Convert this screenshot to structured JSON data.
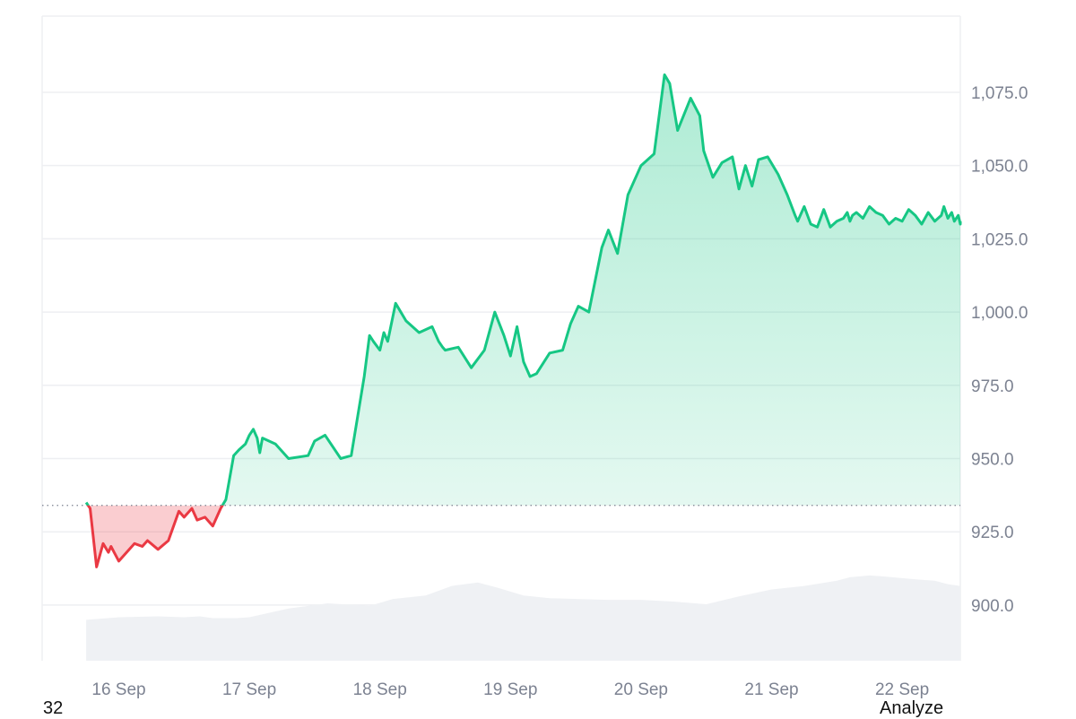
{
  "colors": {
    "up": "#16c784",
    "down": "#ea3943",
    "up_fill": "#16c784",
    "down_fill": "#ea3943",
    "volume": "#eff1f4",
    "grid": "#eeeff2",
    "baseline": "#7c8291"
  },
  "footer": {
    "left_text": "32",
    "right_text": "Analyze"
  },
  "chart_data": {
    "type": "area",
    "title": "",
    "xlabel": "",
    "ylabel": "",
    "x_ticks": [
      "16 Sep",
      "17 Sep",
      "18 Sep",
      "19 Sep",
      "20 Sep",
      "21 Sep",
      "22 Sep"
    ],
    "y_ticks": [
      "900.0",
      "925.0",
      "950.0",
      "975.0",
      "1,000.0",
      "1,025.0",
      "1,050.0",
      "1,075.0"
    ],
    "ylim": [
      881,
      1101
    ],
    "baseline": 934,
    "grid": true,
    "y_axis_side": "right",
    "price": {
      "x_unit": "days since 16 Sep (00:00)",
      "x": [
        -0.25,
        -0.22,
        -0.17,
        -0.12,
        -0.08,
        -0.06,
        0.0,
        0.06,
        0.12,
        0.18,
        0.22,
        0.3,
        0.38,
        0.46,
        0.5,
        0.56,
        0.6,
        0.66,
        0.72,
        0.78,
        0.82,
        0.88,
        0.92,
        0.97,
        1.0,
        1.03,
        1.06,
        1.08,
        1.1,
        1.2,
        1.3,
        1.45,
        1.5,
        1.58,
        1.7,
        1.78,
        1.88,
        1.92,
        1.95,
        2.0,
        2.03,
        2.06,
        2.12,
        2.2,
        2.3,
        2.4,
        2.45,
        2.48,
        2.5,
        2.6,
        2.7,
        2.8,
        2.88,
        2.95,
        3.0,
        3.05,
        3.1,
        3.15,
        3.2,
        3.3,
        3.4,
        3.46,
        3.52,
        3.6,
        3.7,
        3.75,
        3.82,
        3.9,
        4.0,
        4.1,
        4.18,
        4.22,
        4.28,
        4.38,
        4.45,
        4.48,
        4.55,
        4.62,
        4.7,
        4.75,
        4.8,
        4.85,
        4.9,
        4.97,
        5.05,
        5.12,
        5.18,
        5.2,
        5.25,
        5.3,
        5.35,
        5.4,
        5.45,
        5.5,
        5.55,
        5.58,
        5.6,
        5.62,
        5.65,
        5.7,
        5.75,
        5.8,
        5.85,
        5.9,
        5.95,
        6.0,
        6.05,
        6.1,
        6.15,
        6.2,
        6.25,
        6.3,
        6.32,
        6.35,
        6.38,
        6.4,
        6.43,
        6.45,
        6.47
      ],
      "values": [
        935,
        933,
        913,
        921,
        918,
        920,
        915,
        918,
        921,
        920,
        922,
        919,
        922,
        932,
        930,
        933,
        929,
        930,
        927,
        933,
        936,
        951,
        953,
        955,
        958,
        960,
        957,
        952,
        957,
        955,
        950,
        951,
        956,
        958,
        950,
        951,
        978,
        992,
        990,
        987,
        993,
        990,
        1003,
        997,
        993,
        995,
        990,
        988,
        987,
        988,
        981,
        987,
        1000,
        992,
        985,
        995,
        983,
        978,
        979,
        986,
        987,
        996,
        1002,
        1000,
        1022,
        1028,
        1020,
        1040,
        1050,
        1054,
        1081,
        1078,
        1062,
        1073,
        1067,
        1055,
        1046,
        1051,
        1053,
        1042,
        1050,
        1043,
        1052,
        1053,
        1047,
        1040,
        1033,
        1031,
        1036,
        1030,
        1029,
        1035,
        1029,
        1031,
        1032,
        1034,
        1031,
        1033,
        1034,
        1032,
        1036,
        1034,
        1033,
        1030,
        1032,
        1031,
        1035,
        1033,
        1030,
        1034,
        1031,
        1033,
        1036,
        1032,
        1034,
        1031,
        1033,
        1030,
        1031
      ]
    },
    "volume": {
      "x": [
        -0.25,
        0.0,
        0.3,
        0.5,
        0.62,
        0.72,
        0.9,
        1.0,
        1.3,
        1.6,
        1.92,
        2.1,
        2.35,
        2.55,
        2.75,
        2.9,
        3.1,
        3.3,
        3.5,
        3.75,
        4.0,
        4.25,
        4.5,
        4.75,
        5.0,
        5.25,
        5.5,
        5.6,
        5.75,
        5.85,
        6.0,
        6.15,
        6.25,
        6.35,
        6.47
      ],
      "values": [
        0.47,
        0.5,
        0.51,
        0.5,
        0.51,
        0.49,
        0.49,
        0.5,
        0.6,
        0.66,
        0.63,
        0.71,
        0.75,
        0.86,
        0.9,
        0.84,
        0.75,
        0.72,
        0.71,
        0.7,
        0.7,
        0.68,
        0.65,
        0.74,
        0.82,
        0.86,
        0.92,
        0.96,
        0.98,
        0.97,
        0.95,
        0.93,
        0.92,
        0.88,
        0.86
      ]
    }
  }
}
